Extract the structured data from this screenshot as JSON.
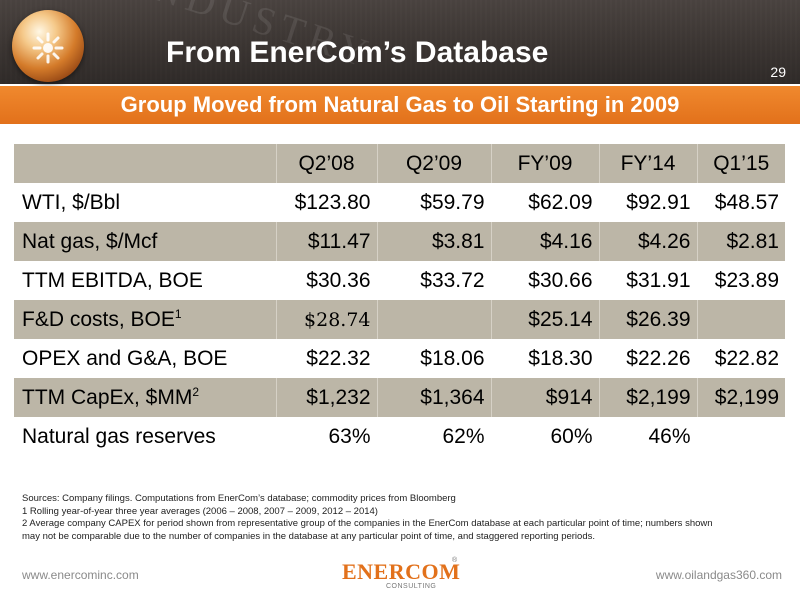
{
  "header": {
    "background_word": "INDUSTRY",
    "title": "From EnerCom’s Database",
    "page_number": "29"
  },
  "subtitle": "Group Moved from Natural Gas to Oil Starting in 2009",
  "table": {
    "columns": [
      "Q2’08",
      "Q2’09",
      "FY’09",
      "FY’14",
      "Q1’15"
    ],
    "rows": [
      {
        "label": "WTI, $/Bbl",
        "sup": "",
        "values": [
          "$123.80",
          "$59.79",
          "$62.09",
          "$92.91",
          "$48.57"
        ]
      },
      {
        "label": "Nat gas, $/Mcf",
        "sup": "",
        "values": [
          "$11.47",
          "$3.81",
          "$4.16",
          "$4.26",
          "$2.81"
        ]
      },
      {
        "label": "TTM EBITDA, BOE",
        "sup": "",
        "values": [
          "$30.36",
          "$33.72",
          "$30.66",
          "$31.91",
          "$23.89"
        ]
      },
      {
        "label": "F&D costs, BOE",
        "sup": "1",
        "values": [
          "$28.74",
          "",
          "$25.14",
          "$26.39",
          ""
        ]
      },
      {
        "label": "OPEX and G&A, BOE",
        "sup": "",
        "values": [
          "$22.32",
          "$18.06",
          "$18.30",
          "$22.26",
          "$22.82"
        ]
      },
      {
        "label": "TTM CapEx, $MM",
        "sup": "2",
        "values": [
          "$1,232",
          "$1,364",
          "$914",
          "$2,199",
          "$2,199"
        ]
      },
      {
        "label": "Natural gas reserves",
        "sup": "",
        "values": [
          "63%",
          "62%",
          "60%",
          "46%",
          ""
        ]
      }
    ]
  },
  "notes": [
    "Sources: Company filings.  Computations from EnerCom’s database; commodity prices from Bloomberg",
    "1 Rolling year-of-year three year averages (2006 – 2008, 2007 – 2009, 2012 – 2014)",
    "2 Average company CAPEX for period shown from representative group of the companies in the EnerCom database at each particular point of time; numbers shown",
    "may not be comparable due to the number of companies in the database at any particular point of time, and staggered reporting periods."
  ],
  "footer": {
    "left_url": "www.enercominc.com",
    "right_url": "www.oilandgas360.com",
    "logo_text": "ENERCOM",
    "logo_sub": "CONSULTING",
    "logo_reg": "®"
  },
  "colors": {
    "header_bg": "#3b3532",
    "accent_orange": "#e2711b",
    "row_shade": "#bcb6a7"
  }
}
